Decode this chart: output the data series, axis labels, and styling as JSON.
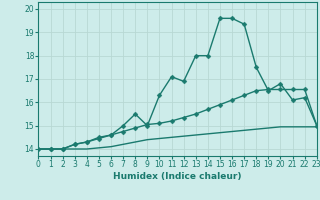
{
  "xlabel": "Humidex (Indice chaleur)",
  "x": [
    0,
    1,
    2,
    3,
    4,
    5,
    6,
    7,
    8,
    9,
    10,
    11,
    12,
    13,
    14,
    15,
    16,
    17,
    18,
    19,
    20,
    21,
    22,
    23
  ],
  "line1": [
    14.0,
    14.0,
    14.0,
    14.2,
    14.3,
    14.5,
    14.6,
    15.0,
    15.5,
    15.0,
    16.3,
    17.1,
    16.9,
    18.0,
    18.0,
    19.6,
    19.6,
    19.35,
    17.5,
    16.5,
    16.8,
    16.1,
    16.2,
    15.0
  ],
  "line2": [
    14.0,
    14.0,
    14.0,
    14.2,
    14.3,
    14.45,
    14.6,
    14.75,
    14.9,
    15.05,
    15.1,
    15.2,
    15.35,
    15.5,
    15.7,
    15.9,
    16.1,
    16.3,
    16.5,
    16.55,
    16.55,
    16.55,
    16.55,
    15.0
  ],
  "line3": [
    14.0,
    14.0,
    14.0,
    14.0,
    14.0,
    14.05,
    14.1,
    14.2,
    14.3,
    14.4,
    14.45,
    14.5,
    14.55,
    14.6,
    14.65,
    14.7,
    14.75,
    14.8,
    14.85,
    14.9,
    14.95,
    14.95,
    14.95,
    14.95
  ],
  "line_color": "#1a7a6e",
  "bg_color": "#cdecea",
  "grid_color": "#b8d8d4",
  "ylim": [
    13.7,
    20.3
  ],
  "yticks": [
    14,
    15,
    16,
    17,
    18,
    19,
    20
  ],
  "xlim": [
    0,
    23
  ],
  "marker": "D",
  "markersize": 2.5,
  "linewidth": 1.0,
  "axis_fontsize": 6.5,
  "tick_fontsize": 5.5
}
